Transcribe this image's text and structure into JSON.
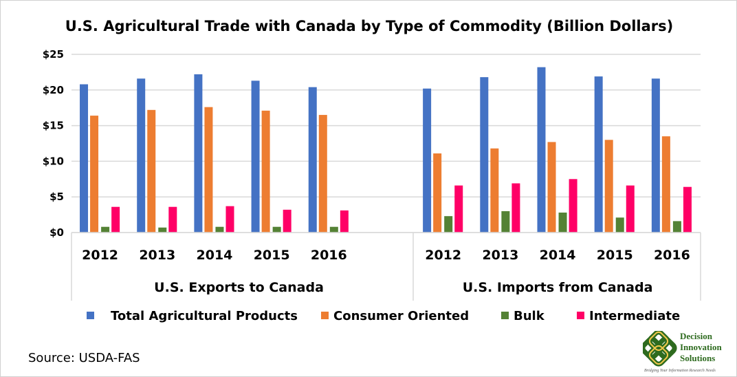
{
  "chart_data": {
    "type": "bar",
    "title": "U.S. Agricultural Trade with Canada by Type of Commodity (Billion Dollars)",
    "xlabel": "",
    "ylabel": "",
    "ylim": [
      0,
      25
    ],
    "y_ticks": [
      "$0",
      "$5",
      "$10",
      "$15",
      "$20",
      "$25"
    ],
    "grid": true,
    "legend_position": "bottom",
    "groups": [
      {
        "label": "U.S. Exports to Canada",
        "categories": [
          "2012",
          "2013",
          "2014",
          "2015",
          "2016"
        ]
      },
      {
        "label": "U.S. Imports from Canada",
        "categories": [
          "2012",
          "2013",
          "2014",
          "2015",
          "2016"
        ]
      }
    ],
    "series": [
      {
        "name": "Total Agricultural Products",
        "color": "#4472C4",
        "values": [
          [
            20.8,
            21.6,
            22.2,
            21.3,
            20.4
          ],
          [
            20.2,
            21.8,
            23.2,
            21.9,
            21.6
          ]
        ]
      },
      {
        "name": "Consumer Oriented",
        "color": "#ED7D31",
        "values": [
          [
            16.4,
            17.2,
            17.6,
            17.1,
            16.5
          ],
          [
            11.1,
            11.8,
            12.7,
            13.0,
            13.5
          ]
        ]
      },
      {
        "name": "Bulk",
        "color": "#548235",
        "values": [
          [
            0.8,
            0.7,
            0.8,
            0.8,
            0.8
          ],
          [
            2.3,
            3.0,
            2.8,
            2.1,
            1.6
          ]
        ]
      },
      {
        "name": "Intermediate",
        "color": "#FF0066",
        "values": [
          [
            3.6,
            3.6,
            3.7,
            3.2,
            3.1
          ],
          [
            6.6,
            6.9,
            7.5,
            6.6,
            6.4
          ]
        ]
      }
    ]
  },
  "source": "Source: USDA-FAS",
  "logo": {
    "name_lines": [
      "Decision",
      "Innovation",
      "Solutions"
    ],
    "tagline": "Bridging Your Information Research Needs"
  }
}
